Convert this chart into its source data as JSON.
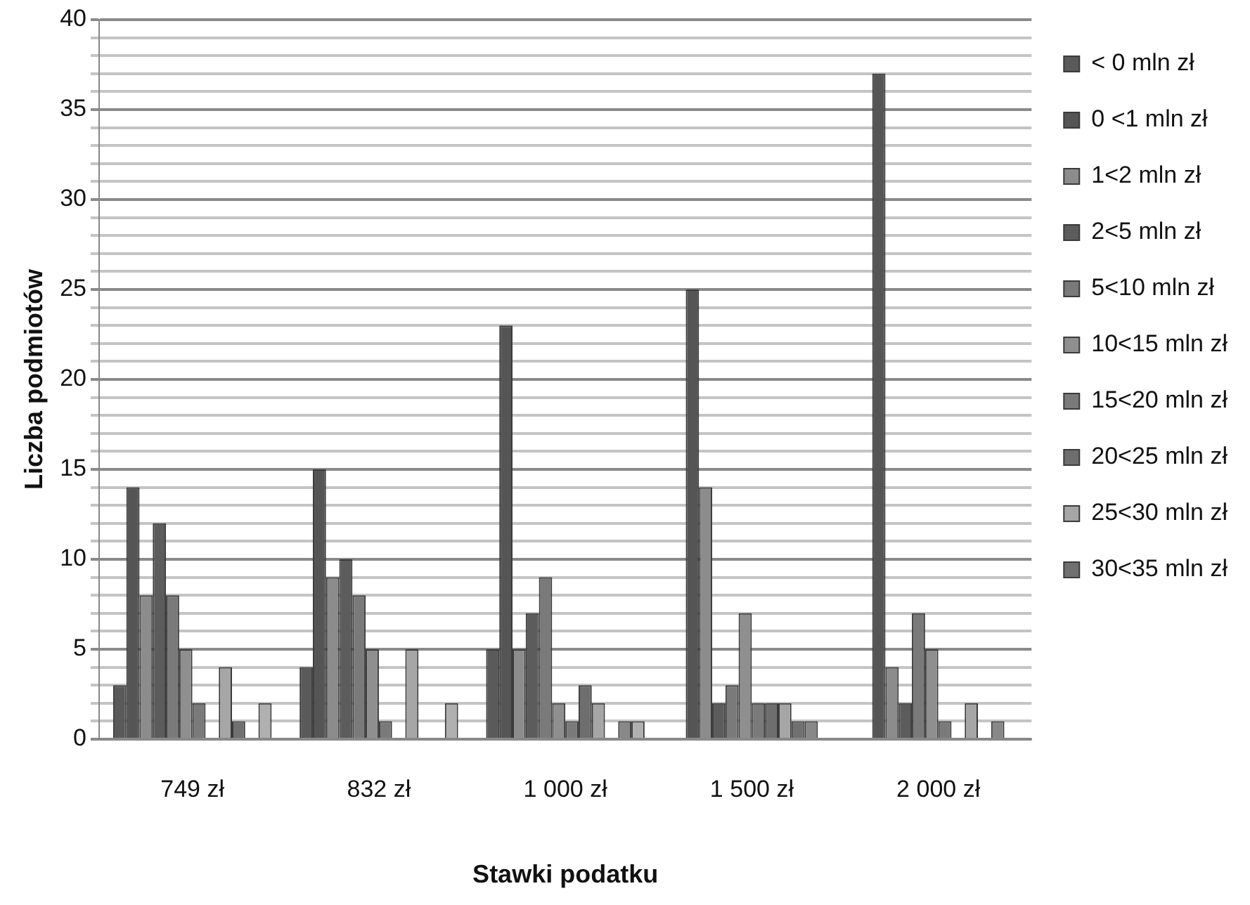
{
  "chart_data": {
    "type": "bar",
    "xlabel": "Stawki podatku",
    "ylabel": "Liczba podmiotów",
    "categories": [
      "749 zł",
      "832 zł",
      "1 000 zł",
      "1 500 zł",
      "2 000 zł"
    ],
    "series": [
      {
        "name": "< 0 mln zł",
        "color": "#5a5a5a",
        "values": [
          3,
          4,
          5,
          0,
          0
        ]
      },
      {
        "name": "0 <1 mln zł",
        "color": "#555555",
        "values": [
          14,
          15,
          23,
          25,
          37
        ]
      },
      {
        "name": "1<2 mln zł",
        "color": "#8c8c8c",
        "values": [
          8,
          9,
          5,
          14,
          4
        ]
      },
      {
        "name": "2<5 mln zł",
        "color": "#5c5c5c",
        "values": [
          12,
          10,
          7,
          2,
          2
        ]
      },
      {
        "name": "5<10 mln zł",
        "color": "#7a7a7a",
        "values": [
          8,
          8,
          9,
          3,
          7
        ]
      },
      {
        "name": "10<15 mln zł",
        "color": "#8f8f8f",
        "values": [
          5,
          5,
          2,
          7,
          5
        ]
      },
      {
        "name": "15<20 mln zł",
        "color": "#7a7a7a",
        "values": [
          2,
          1,
          1,
          2,
          1
        ]
      },
      {
        "name": "20<25 mln zł",
        "color": "#6e6e6e",
        "values": [
          0,
          0,
          3,
          2,
          0
        ]
      },
      {
        "name": "25<30 mln zł",
        "color": "#a6a6a6",
        "values": [
          4,
          5,
          2,
          2,
          2
        ]
      },
      {
        "name": "30<35 mln zł",
        "color": "#707070",
        "values": [
          1,
          0,
          0,
          1,
          0
        ]
      },
      {
        "color": "#888888",
        "values": [
          0,
          0,
          1,
          1,
          1
        ]
      },
      {
        "color": "#b0b0b0",
        "values": [
          2,
          2,
          1,
          0,
          0
        ]
      }
    ],
    "ylim": [
      0,
      40
    ],
    "yticks": [
      0,
      {
        "value": 1,
        "label": null
      },
      {
        "value": 2,
        "label": null
      },
      {
        "value": 3,
        "label": null
      },
      {
        "value": 4,
        "label": null
      },
      5,
      {
        "value": 6,
        "label": null
      },
      {
        "value": 7,
        "label": null
      },
      {
        "value": 8,
        "label": null
      },
      {
        "value": 9,
        "label": null
      },
      10,
      {
        "value": 11,
        "label": null
      },
      {
        "value": 12,
        "label": null
      },
      {
        "value": 13,
        "label": null
      },
      {
        "value": 14,
        "label": null
      },
      15,
      {
        "value": 16,
        "label": null
      },
      {
        "value": 17,
        "label": null
      },
      {
        "value": 18,
        "label": null
      },
      {
        "value": 19,
        "label": null
      },
      20,
      {
        "value": 21,
        "label": null
      },
      {
        "value": 22,
        "label": null
      },
      {
        "value": 23,
        "label": null
      },
      {
        "value": 24,
        "label": null
      },
      25,
      {
        "value": 26,
        "label": null
      },
      {
        "value": 27,
        "label": null
      },
      {
        "value": 28,
        "label": null
      },
      {
        "value": 29,
        "label": null
      },
      30,
      {
        "value": 31,
        "label": null
      },
      {
        "value": 32,
        "label": null
      },
      {
        "value": 33,
        "label": null
      },
      {
        "value": 34,
        "label": null
      },
      35,
      {
        "value": 36,
        "label": null
      },
      {
        "value": 37,
        "label": null
      },
      {
        "value": 38,
        "label": null
      },
      {
        "value": 39,
        "label": null
      },
      40
    ],
    "grid": "y",
    "legend": "right"
  }
}
